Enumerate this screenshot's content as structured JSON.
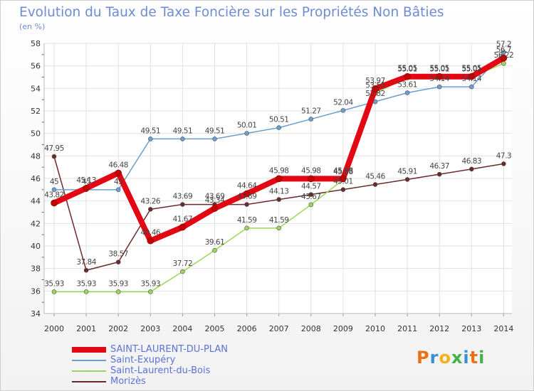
{
  "title": "Evolution du Taux de Taxe Foncière sur les Propriétés Non Bâties",
  "subtitle": "(en %)",
  "logo": {
    "text": "Proxiti",
    "letters": [
      "P",
      "r",
      "o",
      "x",
      "i",
      "t",
      "i"
    ]
  },
  "colors": {
    "title": "#6e8bd6",
    "grid": "#e2e2e2",
    "axis": "#bbbbbb"
  },
  "chart_data": {
    "type": "line",
    "title": "Evolution du Taux de Taxe Foncière sur les Propriétés Non Bâties",
    "ylabel": "(en %)",
    "xlabel": "",
    "ylim": [
      34,
      58
    ],
    "yticks": [
      34,
      36,
      38,
      40,
      42,
      44,
      46,
      48,
      50,
      52,
      54,
      56,
      58
    ],
    "ytick_labels": [
      "34",
      "36",
      "38",
      "40",
      "42",
      "44",
      "46",
      "48",
      "50",
      "52",
      "54",
      "56",
      "58"
    ],
    "x": [
      "2000",
      "2001",
      "2002",
      "2003",
      "2004",
      "2005",
      "2006",
      "2007",
      "2008",
      "2009",
      "2010",
      "2011",
      "2012",
      "2013",
      "2014"
    ],
    "grid": true,
    "legend_position": "bottom-left",
    "series": [
      {
        "name": "SAINT-LAURENT-DU-PLAN",
        "color": "#e30613",
        "emphasis": true,
        "values": [
          43.82,
          45.13,
          46.48,
          40.46,
          41.67,
          43.34,
          44.64,
          45.98,
          45.98,
          45.98,
          53.97,
          55.05,
          55.05,
          55.05,
          56.7
        ],
        "labels": [
          "43.82",
          "45.13",
          "46.48",
          "40.46",
          "41.67",
          "43.34",
          "44.64",
          "45.98",
          "45.98",
          "45.98",
          "53.97",
          "55.05",
          "55.05",
          "55.05",
          "56.7"
        ]
      },
      {
        "name": "Saint-Exupéry",
        "color": "#6b9fcf",
        "values": [
          45,
          45,
          45,
          49.51,
          49.51,
          49.51,
          50.01,
          50.51,
          51.27,
          52.04,
          52.82,
          53.61,
          54.14,
          54.14,
          57.2
        ],
        "labels": [
          "45",
          "45",
          "45",
          "49.51",
          "49.51",
          "49.51",
          "50.01",
          "50.51",
          "51.27",
          "52.04",
          "52.82",
          "53.61",
          "54.14",
          "54.14",
          "57.2"
        ]
      },
      {
        "name": "Saint-Laurent-du-Bois",
        "color": "#9bd65a",
        "values": [
          35.93,
          35.93,
          35.93,
          35.93,
          37.72,
          39.61,
          41.59,
          41.59,
          43.67,
          45.88,
          53.55,
          55.01,
          55.01,
          55.01,
          56.22
        ],
        "labels": [
          "35.93",
          "35.93",
          "35.93",
          "35.93",
          "37.72",
          "39.61",
          "41.59",
          "41.59",
          "43.67",
          "45.88",
          "53.55",
          "55.01",
          "55.01",
          "55.01",
          "56.22"
        ]
      },
      {
        "name": "Morizès",
        "color": "#6b2a2a",
        "values": [
          47.95,
          37.84,
          38.57,
          43.26,
          43.69,
          43.69,
          43.69,
          44.13,
          44.57,
          45.01,
          45.46,
          45.91,
          46.37,
          46.83,
          47.3
        ],
        "labels": [
          "47.95",
          "37.84",
          "38.57",
          "43.26",
          "43.69",
          "43.69",
          "43.69",
          "44.13",
          "44.57",
          "45.01",
          "45.46",
          "45.91",
          "46.37",
          "46.83",
          "47.3"
        ]
      }
    ]
  }
}
